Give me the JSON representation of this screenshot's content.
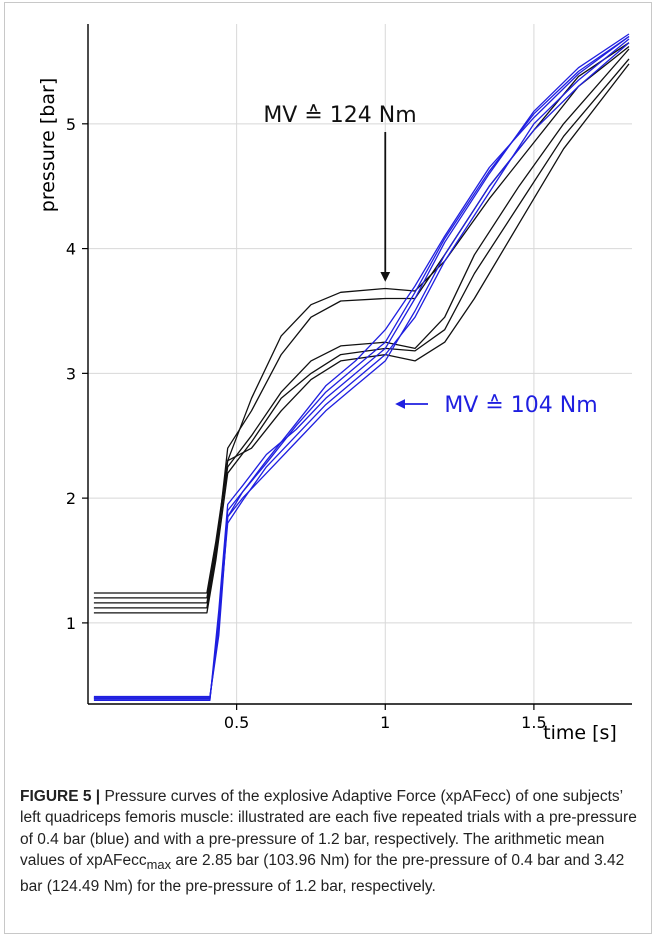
{
  "chart_data": {
    "type": "line",
    "xlabel": "time [s]",
    "ylabel": "pressure [bar]",
    "xlim": [
      0,
      1.83
    ],
    "ylim": [
      0.35,
      5.8
    ],
    "xticks": [
      0.5,
      1,
      1.5
    ],
    "xtick_labels": [
      "0.5",
      "1",
      "1.5"
    ],
    "yticks": [
      1,
      2,
      3,
      4,
      5
    ],
    "ytick_labels": [
      "1",
      "2",
      "3",
      "4",
      "5"
    ],
    "grid": true,
    "colors": {
      "black": "#111111",
      "blue": "#1f1fe0"
    },
    "series": [
      {
        "color": "black",
        "points": [
          [
            0.02,
            1.16
          ],
          [
            0.4,
            1.16
          ],
          [
            0.43,
            1.55
          ],
          [
            0.47,
            2.3
          ],
          [
            0.55,
            2.8
          ],
          [
            0.65,
            3.3
          ],
          [
            0.75,
            3.55
          ],
          [
            0.85,
            3.65
          ],
          [
            1.0,
            3.68
          ],
          [
            1.1,
            3.66
          ],
          [
            1.2,
            3.9
          ],
          [
            1.35,
            4.4
          ],
          [
            1.5,
            4.85
          ],
          [
            1.65,
            5.3
          ],
          [
            1.82,
            5.62
          ]
        ]
      },
      {
        "color": "black",
        "points": [
          [
            0.02,
            1.12
          ],
          [
            0.4,
            1.12
          ],
          [
            0.43,
            1.55
          ],
          [
            0.47,
            2.4
          ],
          [
            0.55,
            2.7
          ],
          [
            0.65,
            3.15
          ],
          [
            0.75,
            3.45
          ],
          [
            0.85,
            3.58
          ],
          [
            1.0,
            3.6
          ],
          [
            1.1,
            3.6
          ],
          [
            1.2,
            3.95
          ],
          [
            1.35,
            4.5
          ],
          [
            1.5,
            4.95
          ],
          [
            1.65,
            5.38
          ],
          [
            1.82,
            5.65
          ]
        ]
      },
      {
        "color": "black",
        "points": [
          [
            0.02,
            1.2
          ],
          [
            0.4,
            1.2
          ],
          [
            0.43,
            1.6
          ],
          [
            0.47,
            2.25
          ],
          [
            0.55,
            2.5
          ],
          [
            0.65,
            2.85
          ],
          [
            0.75,
            3.1
          ],
          [
            0.85,
            3.22
          ],
          [
            1.0,
            3.25
          ],
          [
            1.1,
            3.2
          ],
          [
            1.2,
            3.45
          ],
          [
            1.3,
            3.95
          ],
          [
            1.45,
            4.5
          ],
          [
            1.6,
            5.0
          ],
          [
            1.82,
            5.6
          ]
        ]
      },
      {
        "color": "black",
        "points": [
          [
            0.02,
            1.08
          ],
          [
            0.4,
            1.08
          ],
          [
            0.43,
            1.5
          ],
          [
            0.47,
            2.2
          ],
          [
            0.55,
            2.45
          ],
          [
            0.65,
            2.8
          ],
          [
            0.75,
            3.0
          ],
          [
            0.85,
            3.15
          ],
          [
            1.0,
            3.2
          ],
          [
            1.1,
            3.18
          ],
          [
            1.2,
            3.35
          ],
          [
            1.3,
            3.8
          ],
          [
            1.45,
            4.35
          ],
          [
            1.6,
            4.9
          ],
          [
            1.82,
            5.52
          ]
        ]
      },
      {
        "color": "black",
        "points": [
          [
            0.02,
            1.24
          ],
          [
            0.4,
            1.24
          ],
          [
            0.43,
            1.65
          ],
          [
            0.47,
            2.3
          ],
          [
            0.55,
            2.4
          ],
          [
            0.65,
            2.7
          ],
          [
            0.75,
            2.95
          ],
          [
            0.85,
            3.1
          ],
          [
            1.0,
            3.15
          ],
          [
            1.1,
            3.1
          ],
          [
            1.2,
            3.25
          ],
          [
            1.3,
            3.6
          ],
          [
            1.45,
            4.2
          ],
          [
            1.6,
            4.8
          ],
          [
            1.82,
            5.48
          ]
        ]
      },
      {
        "color": "blue",
        "points": [
          [
            0.02,
            0.4
          ],
          [
            0.41,
            0.4
          ],
          [
            0.44,
            1.0
          ],
          [
            0.47,
            1.9
          ],
          [
            0.52,
            2.05
          ],
          [
            0.6,
            2.3
          ],
          [
            0.7,
            2.6
          ],
          [
            0.8,
            2.9
          ],
          [
            0.9,
            3.1
          ],
          [
            1.0,
            3.35
          ],
          [
            1.1,
            3.7
          ],
          [
            1.2,
            4.1
          ],
          [
            1.35,
            4.65
          ],
          [
            1.5,
            5.05
          ],
          [
            1.65,
            5.4
          ],
          [
            1.82,
            5.7
          ]
        ]
      },
      {
        "color": "blue",
        "points": [
          [
            0.02,
            0.38
          ],
          [
            0.41,
            0.38
          ],
          [
            0.44,
            1.1
          ],
          [
            0.47,
            1.95
          ],
          [
            0.52,
            2.1
          ],
          [
            0.6,
            2.35
          ],
          [
            0.7,
            2.55
          ],
          [
            0.8,
            2.8
          ],
          [
            0.9,
            3.0
          ],
          [
            1.0,
            3.2
          ],
          [
            1.1,
            3.6
          ],
          [
            1.2,
            4.05
          ],
          [
            1.35,
            4.6
          ],
          [
            1.5,
            5.1
          ],
          [
            1.65,
            5.45
          ],
          [
            1.82,
            5.72
          ]
        ]
      },
      {
        "color": "blue",
        "points": [
          [
            0.02,
            0.41
          ],
          [
            0.41,
            0.41
          ],
          [
            0.44,
            0.9
          ],
          [
            0.47,
            1.85
          ],
          [
            0.52,
            2.0
          ],
          [
            0.6,
            2.2
          ],
          [
            0.7,
            2.45
          ],
          [
            0.8,
            2.7
          ],
          [
            0.9,
            2.9
          ],
          [
            1.0,
            3.1
          ],
          [
            1.1,
            3.5
          ],
          [
            1.2,
            3.95
          ],
          [
            1.35,
            4.5
          ],
          [
            1.5,
            4.95
          ],
          [
            1.65,
            5.3
          ],
          [
            1.82,
            5.65
          ]
        ]
      },
      {
        "color": "blue",
        "points": [
          [
            0.02,
            0.39
          ],
          [
            0.41,
            0.39
          ],
          [
            0.44,
            1.0
          ],
          [
            0.47,
            1.8
          ],
          [
            0.52,
            1.98
          ],
          [
            0.6,
            2.25
          ],
          [
            0.7,
            2.5
          ],
          [
            0.8,
            2.75
          ],
          [
            0.9,
            2.95
          ],
          [
            1.0,
            3.15
          ],
          [
            1.1,
            3.45
          ],
          [
            1.2,
            3.9
          ],
          [
            1.35,
            4.45
          ],
          [
            1.5,
            5.0
          ],
          [
            1.65,
            5.35
          ],
          [
            1.82,
            5.68
          ]
        ]
      },
      {
        "color": "blue",
        "points": [
          [
            0.02,
            0.4
          ],
          [
            0.41,
            0.4
          ],
          [
            0.44,
            0.95
          ],
          [
            0.47,
            1.85
          ],
          [
            0.52,
            2.05
          ],
          [
            0.6,
            2.28
          ],
          [
            0.7,
            2.58
          ],
          [
            0.8,
            2.85
          ],
          [
            0.9,
            3.05
          ],
          [
            1.0,
            3.25
          ],
          [
            1.1,
            3.65
          ],
          [
            1.2,
            4.08
          ],
          [
            1.35,
            4.62
          ],
          [
            1.5,
            5.08
          ],
          [
            1.65,
            5.42
          ],
          [
            1.82,
            5.7
          ]
        ]
      }
    ],
    "annotations": [
      {
        "text": "MV ≙ 124 Nm",
        "color": "black",
        "arrow_to": [
          1.0,
          3.75
        ]
      },
      {
        "text": "MV ≙ 104 Nm",
        "color": "blue",
        "arrow_to": [
          1.04,
          2.85
        ]
      }
    ]
  },
  "caption": {
    "label": "FIGURE 5 |",
    "text_1": " Pressure curves of the explosive Adaptive Force (xpAFecc) of one subjects’ left quadriceps femoris muscle: illustrated are each five repeated trials with a pre-pressure of 0.4 bar (blue) and with a pre-pressure of 1.2 bar, respectively. The arithmetic mean values of xpAFecc",
    "subscript": "max",
    "text_2": " are 2.85 bar (103.96 Nm) for the pre-pressure of 0.4 bar and 3.42 bar (124.49 Nm) for the pre-pressure of 1.2 bar, respectively."
  }
}
